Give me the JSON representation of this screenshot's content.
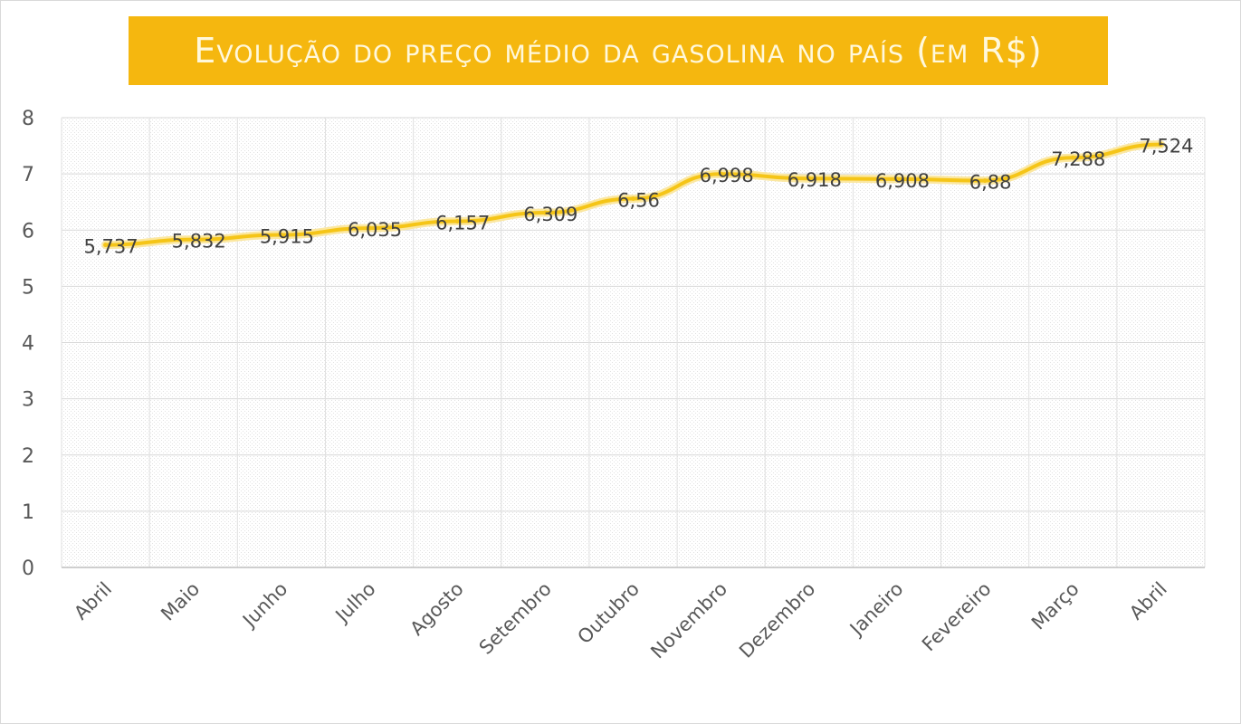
{
  "chart_data": {
    "type": "line",
    "title": "Evolução do preço médio da gasolina no país (em R$)",
    "categories": [
      "Abril",
      "Maio",
      "Junho",
      "Julho",
      "Agosto",
      "Setembro",
      "Outubro",
      "Novembro",
      "Dezembro",
      "Janeiro",
      "Fevereiro",
      "Março",
      "Abril"
    ],
    "values": [
      5.737,
      5.832,
      5.915,
      6.035,
      6.157,
      6.309,
      6.56,
      6.998,
      6.918,
      6.908,
      6.88,
      7.288,
      7.524
    ],
    "value_labels": [
      "5,737",
      "5,832",
      "5,915",
      "6,035",
      "6,157",
      "6,309",
      "6,56",
      "6,998",
      "6,918",
      "6,908",
      "6,88",
      "7,288",
      "7,524"
    ],
    "y_ticks": [
      "0",
      "1",
      "2",
      "3",
      "4",
      "5",
      "6",
      "7",
      "8"
    ],
    "ylim": [
      0,
      8
    ],
    "xlabel": "",
    "ylabel": "",
    "grid": true,
    "legend": "none",
    "line_color": "#f5c518",
    "title_bg_color": "#f5b70f"
  }
}
